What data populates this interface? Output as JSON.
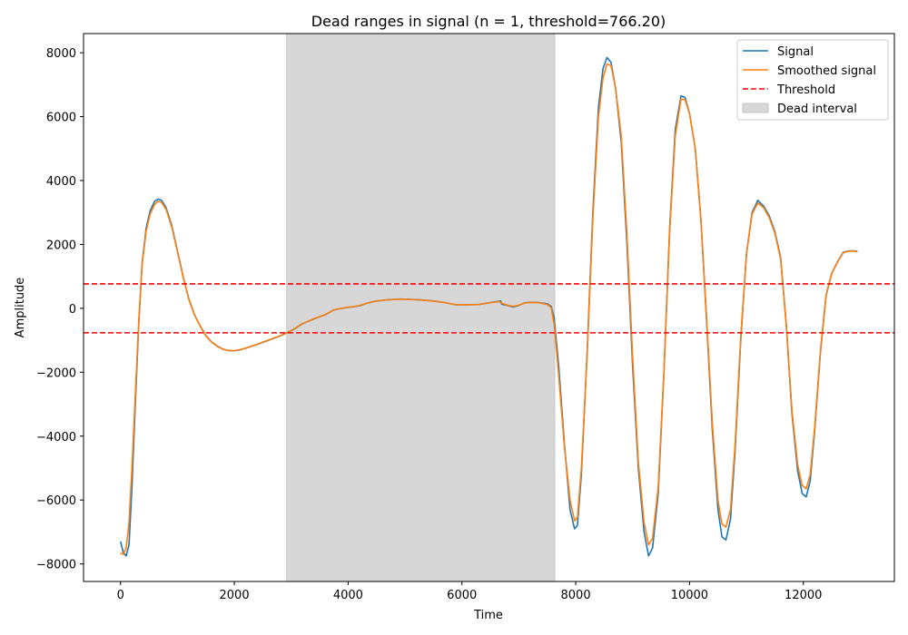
{
  "chart_data": {
    "type": "line",
    "title": "Dead ranges in signal (n = 1, threshold=766.20)",
    "xlabel": "Time",
    "ylabel": "Amplitude",
    "xlim": [
      -650,
      13600
    ],
    "ylim": [
      -8550,
      8600
    ],
    "xticks": [
      0,
      2000,
      4000,
      6000,
      8000,
      10000,
      12000
    ],
    "yticks": [
      -8000,
      -6000,
      -4000,
      -2000,
      0,
      2000,
      4000,
      6000,
      8000
    ],
    "grid": false,
    "legend_position": "top-right",
    "threshold": 766.2,
    "threshold_lines": [
      766.2,
      -766.2
    ],
    "dead_intervals": [
      [
        2920,
        7630
      ]
    ],
    "colors": {
      "signal": "#1f77b4",
      "smoothed": "#ff7f0e",
      "threshold": "#ff0000",
      "dead": "#d7d7d7"
    },
    "legend": [
      {
        "label": "Signal",
        "key": "signal",
        "style": "line"
      },
      {
        "label": "Smoothed signal",
        "key": "smoothed",
        "style": "line"
      },
      {
        "label": "Threshold",
        "key": "threshold",
        "style": "dashed"
      },
      {
        "label": "Dead interval",
        "key": "dead",
        "style": "patch"
      }
    ],
    "series": [
      {
        "name": "Signal",
        "key": "signal",
        "points": [
          [
            0,
            -7300
          ],
          [
            50,
            -7650
          ],
          [
            100,
            -7750
          ],
          [
            150,
            -7400
          ],
          [
            200,
            -5600
          ],
          [
            260,
            -3000
          ],
          [
            320,
            -500
          ],
          [
            380,
            1400
          ],
          [
            450,
            2500
          ],
          [
            520,
            3050
          ],
          [
            600,
            3350
          ],
          [
            660,
            3420
          ],
          [
            720,
            3380
          ],
          [
            800,
            3150
          ],
          [
            900,
            2600
          ],
          [
            1000,
            1800
          ],
          [
            1100,
            1000
          ],
          [
            1200,
            300
          ],
          [
            1300,
            -200
          ],
          [
            1400,
            -550
          ],
          [
            1500,
            -850
          ],
          [
            1600,
            -1050
          ],
          [
            1700,
            -1180
          ],
          [
            1800,
            -1280
          ],
          [
            1900,
            -1320
          ],
          [
            2000,
            -1330
          ],
          [
            2100,
            -1300
          ],
          [
            2200,
            -1250
          ],
          [
            2400,
            -1130
          ],
          [
            2600,
            -1000
          ],
          [
            2800,
            -870
          ],
          [
            2920,
            -770
          ],
          [
            3050,
            -650
          ],
          [
            3200,
            -480
          ],
          [
            3400,
            -330
          ],
          [
            3600,
            -200
          ],
          [
            3750,
            -50
          ],
          [
            3900,
            0
          ],
          [
            4000,
            30
          ],
          [
            4100,
            50
          ],
          [
            4200,
            80
          ],
          [
            4350,
            170
          ],
          [
            4500,
            230
          ],
          [
            4700,
            270
          ],
          [
            4900,
            290
          ],
          [
            5100,
            280
          ],
          [
            5300,
            260
          ],
          [
            5500,
            230
          ],
          [
            5700,
            180
          ],
          [
            5900,
            110
          ],
          [
            6100,
            110
          ],
          [
            6300,
            120
          ],
          [
            6500,
            180
          ],
          [
            6680,
            230
          ],
          [
            6700,
            130
          ],
          [
            6800,
            90
          ],
          [
            6900,
            40
          ],
          [
            7000,
            90
          ],
          [
            7100,
            170
          ],
          [
            7200,
            190
          ],
          [
            7350,
            180
          ],
          [
            7500,
            140
          ],
          [
            7570,
            60
          ],
          [
            7620,
            -300
          ],
          [
            7700,
            -1800
          ],
          [
            7800,
            -4200
          ],
          [
            7900,
            -6300
          ],
          [
            7980,
            -6900
          ],
          [
            8030,
            -6800
          ],
          [
            8100,
            -5200
          ],
          [
            8200,
            -1400
          ],
          [
            8300,
            3000
          ],
          [
            8400,
            6300
          ],
          [
            8480,
            7500
          ],
          [
            8550,
            7850
          ],
          [
            8620,
            7700
          ],
          [
            8700,
            6900
          ],
          [
            8800,
            5200
          ],
          [
            8900,
            2000
          ],
          [
            9000,
            -1800
          ],
          [
            9100,
            -5000
          ],
          [
            9200,
            -7000
          ],
          [
            9280,
            -7750
          ],
          [
            9350,
            -7500
          ],
          [
            9450,
            -5800
          ],
          [
            9550,
            -2000
          ],
          [
            9650,
            2500
          ],
          [
            9750,
            5600
          ],
          [
            9850,
            6650
          ],
          [
            9920,
            6600
          ],
          [
            10000,
            6100
          ],
          [
            10100,
            5000
          ],
          [
            10200,
            2800
          ],
          [
            10300,
            -400
          ],
          [
            10400,
            -3800
          ],
          [
            10500,
            -6300
          ],
          [
            10570,
            -7150
          ],
          [
            10640,
            -7250
          ],
          [
            10720,
            -6600
          ],
          [
            10800,
            -4500
          ],
          [
            10900,
            -1000
          ],
          [
            11000,
            1700
          ],
          [
            11100,
            3000
          ],
          [
            11200,
            3380
          ],
          [
            11300,
            3200
          ],
          [
            11400,
            2900
          ],
          [
            11500,
            2400
          ],
          [
            11600,
            1600
          ],
          [
            11700,
            -500
          ],
          [
            11800,
            -3300
          ],
          [
            11900,
            -5100
          ],
          [
            11980,
            -5800
          ],
          [
            12050,
            -5900
          ],
          [
            12120,
            -5400
          ],
          [
            12200,
            -3800
          ],
          [
            12300,
            -1400
          ],
          [
            12400,
            400
          ],
          [
            12500,
            1100
          ],
          [
            12600,
            1450
          ],
          [
            12700,
            1750
          ],
          [
            12800,
            1800
          ],
          [
            12900,
            1800
          ],
          [
            12950,
            1780
          ]
        ]
      },
      {
        "name": "Smoothed signal",
        "key": "smoothed",
        "points": [
          [
            0,
            -7650
          ],
          [
            50,
            -7700
          ],
          [
            100,
            -7500
          ],
          [
            150,
            -6700
          ],
          [
            200,
            -5000
          ],
          [
            260,
            -2700
          ],
          [
            320,
            -400
          ],
          [
            380,
            1350
          ],
          [
            450,
            2400
          ],
          [
            520,
            2950
          ],
          [
            600,
            3250
          ],
          [
            660,
            3350
          ],
          [
            720,
            3320
          ],
          [
            800,
            3100
          ],
          [
            900,
            2550
          ],
          [
            1000,
            1780
          ],
          [
            1100,
            980
          ],
          [
            1200,
            290
          ],
          [
            1300,
            -210
          ],
          [
            1400,
            -560
          ],
          [
            1500,
            -860
          ],
          [
            1600,
            -1060
          ],
          [
            1700,
            -1190
          ],
          [
            1800,
            -1280
          ],
          [
            1900,
            -1320
          ],
          [
            2000,
            -1325
          ],
          [
            2100,
            -1295
          ],
          [
            2200,
            -1245
          ],
          [
            2400,
            -1125
          ],
          [
            2600,
            -995
          ],
          [
            2800,
            -865
          ],
          [
            2920,
            -765
          ],
          [
            3050,
            -645
          ],
          [
            3200,
            -475
          ],
          [
            3400,
            -325
          ],
          [
            3600,
            -195
          ],
          [
            3750,
            -45
          ],
          [
            3900,
            5
          ],
          [
            4000,
            35
          ],
          [
            4100,
            55
          ],
          [
            4200,
            85
          ],
          [
            4350,
            170
          ],
          [
            4500,
            230
          ],
          [
            4700,
            265
          ],
          [
            4900,
            285
          ],
          [
            5100,
            278
          ],
          [
            5300,
            258
          ],
          [
            5500,
            228
          ],
          [
            5700,
            178
          ],
          [
            5900,
            112
          ],
          [
            6100,
            112
          ],
          [
            6300,
            122
          ],
          [
            6500,
            175
          ],
          [
            6650,
            210
          ],
          [
            6700,
            160
          ],
          [
            6800,
            100
          ],
          [
            6900,
            60
          ],
          [
            7000,
            100
          ],
          [
            7100,
            165
          ],
          [
            7200,
            185
          ],
          [
            7350,
            175
          ],
          [
            7500,
            120
          ],
          [
            7570,
            20
          ],
          [
            7620,
            -500
          ],
          [
            7700,
            -2100
          ],
          [
            7800,
            -4300
          ],
          [
            7900,
            -6000
          ],
          [
            7980,
            -6650
          ],
          [
            8030,
            -6550
          ],
          [
            8100,
            -5000
          ],
          [
            8200,
            -1500
          ],
          [
            8300,
            2800
          ],
          [
            8400,
            6000
          ],
          [
            8480,
            7200
          ],
          [
            8550,
            7650
          ],
          [
            8620,
            7600
          ],
          [
            8700,
            6900
          ],
          [
            8800,
            5400
          ],
          [
            8900,
            2300
          ],
          [
            9000,
            -1500
          ],
          [
            9100,
            -4800
          ],
          [
            9200,
            -6700
          ],
          [
            9280,
            -7400
          ],
          [
            9350,
            -7200
          ],
          [
            9450,
            -5600
          ],
          [
            9550,
            -2000
          ],
          [
            9650,
            2400
          ],
          [
            9750,
            5400
          ],
          [
            9850,
            6550
          ],
          [
            9920,
            6530
          ],
          [
            10000,
            6100
          ],
          [
            10100,
            5000
          ],
          [
            10200,
            2800
          ],
          [
            10300,
            -300
          ],
          [
            10400,
            -3600
          ],
          [
            10500,
            -6000
          ],
          [
            10570,
            -6750
          ],
          [
            10640,
            -6850
          ],
          [
            10720,
            -6300
          ],
          [
            10800,
            -4300
          ],
          [
            10900,
            -900
          ],
          [
            11000,
            1700
          ],
          [
            11100,
            2950
          ],
          [
            11200,
            3300
          ],
          [
            11300,
            3150
          ],
          [
            11400,
            2850
          ],
          [
            11500,
            2350
          ],
          [
            11600,
            1550
          ],
          [
            11700,
            -500
          ],
          [
            11800,
            -3200
          ],
          [
            11900,
            -4900
          ],
          [
            11980,
            -5550
          ],
          [
            12050,
            -5650
          ],
          [
            12120,
            -5200
          ],
          [
            12200,
            -3700
          ],
          [
            12300,
            -1350
          ],
          [
            12400,
            420
          ],
          [
            12500,
            1100
          ],
          [
            12600,
            1440
          ],
          [
            12700,
            1740
          ],
          [
            12800,
            1790
          ],
          [
            12900,
            1790
          ],
          [
            12950,
            1770
          ]
        ]
      }
    ]
  }
}
